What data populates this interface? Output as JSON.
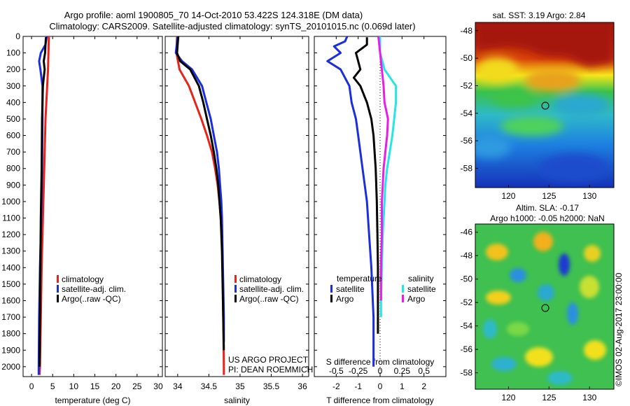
{
  "header": {
    "title_line1": "Argo profile: aoml 1900805_70 14-Oct-2010 53.422S 124.318E (DM data)",
    "title_line2": "Climatology: CARS2009. Satellite-adjusted climatology: synTS_20101015.nc (0.069d later)"
  },
  "colors": {
    "climatology": "#e8231c",
    "satellite": "#1a2ee0",
    "argo": "#000000",
    "argo_s_diff": "#e81ee8",
    "satellite_s_diff": "#25e6e6"
  },
  "chart_data": [
    {
      "type": "line",
      "name": "temperature-profile",
      "xlabel": "temperature (deg C)",
      "ylabel": "",
      "xlim": [
        -2,
        31
      ],
      "ylim": [
        2060,
        0
      ],
      "xticks": [
        0,
        5,
        10,
        15,
        20,
        25,
        30
      ],
      "yticks": [
        0,
        100,
        200,
        300,
        400,
        500,
        600,
        700,
        800,
        900,
        1000,
        1100,
        1200,
        1300,
        1400,
        1500,
        1600,
        1700,
        1800,
        1900,
        2000
      ],
      "legend": [
        "climatology",
        "satellite-adj. clim.",
        "Argo(..raw -QC)"
      ],
      "legend_position": "lower-center",
      "series": [
        {
          "name": "climatology",
          "depth": [
            0,
            100,
            200,
            300,
            500,
            800,
            1100,
            1400,
            1700,
            2000,
            2050
          ],
          "values": [
            4.1,
            4.0,
            3.9,
            3.7,
            3.3,
            3.0,
            2.7,
            2.4,
            2.2,
            2.0,
            1.9
          ]
        },
        {
          "name": "satellite-adj. clim.",
          "depth": [
            0,
            50,
            100,
            150,
            200,
            300,
            500,
            800,
            1100,
            1400,
            1700,
            2000,
            2050
          ],
          "values": [
            3.6,
            3.3,
            2.2,
            1.8,
            2.1,
            2.6,
            2.6,
            2.5,
            2.3,
            2.0,
            1.8,
            1.7,
            1.7
          ]
        },
        {
          "name": "Argo(..raw -QC)",
          "depth": [
            5,
            50,
            100,
            150,
            200,
            250,
            300,
            500,
            800,
            1100,
            1400,
            1700,
            2000
          ],
          "values": [
            3.4,
            3.3,
            3.2,
            2.9,
            3.1,
            2.9,
            2.7,
            2.5,
            2.4,
            2.2,
            2.1,
            2.0,
            1.9
          ]
        }
      ]
    },
    {
      "type": "line",
      "name": "salinity-profile",
      "xlabel": "salinity",
      "xlim": [
        33.8,
        36.1
      ],
      "ylim": [
        2060,
        0
      ],
      "xticks": [
        34,
        34.5,
        35,
        35.5,
        36
      ],
      "legend": [
        "climatology",
        "satellite-adj. clim.",
        "Argo(..raw -QC)"
      ],
      "legend_position": "lower-center",
      "annotation": [
        "US ARGO PROJECT",
        "PI: DEAN ROEMMICH"
      ],
      "series": [
        {
          "name": "climatology",
          "depth": [
            0,
            100,
            200,
            300,
            400,
            500,
            600,
            700,
            800,
            900,
            1000,
            1100,
            1200,
            1400,
            1700,
            2000,
            2050
          ],
          "values": [
            33.99,
            33.98,
            34.03,
            34.18,
            34.28,
            34.38,
            34.47,
            34.55,
            34.6,
            34.64,
            34.67,
            34.69,
            34.71,
            34.72,
            34.73,
            34.74,
            34.74
          ]
        },
        {
          "name": "satellite-adj. clim.",
          "depth": [
            0,
            100,
            150,
            200,
            300,
            400,
            500,
            600,
            700,
            800,
            900,
            1000,
            1100,
            1300,
            1500,
            1700,
            1800,
            1850
          ],
          "values": [
            34.0,
            33.97,
            34.07,
            34.23,
            34.39,
            34.46,
            34.53,
            34.58,
            34.63,
            34.66,
            34.68,
            34.7,
            34.71,
            34.72,
            34.73,
            34.74,
            34.74,
            34.74
          ]
        },
        {
          "name": "Argo(..raw -QC)",
          "depth": [
            0,
            100,
            150,
            200,
            300,
            400,
            500,
            600,
            700,
            800,
            900,
            1000,
            1100,
            1300,
            1500,
            1700,
            1900
          ],
          "values": [
            34.01,
            33.99,
            34.04,
            34.2,
            34.34,
            34.41,
            34.47,
            34.53,
            34.58,
            34.62,
            34.65,
            34.67,
            34.69,
            34.71,
            34.72,
            34.73,
            34.74
          ]
        }
      ]
    },
    {
      "type": "line",
      "name": "difference-profile",
      "xlabel": "T difference from climatology",
      "x2label": "S difference from climatology",
      "xlim": [
        -3,
        3
      ],
      "x2lim": [
        -0.75,
        0.75
      ],
      "ylim": [
        2060,
        0
      ],
      "xticks": [
        -2,
        -1,
        0,
        1,
        2
      ],
      "x2ticks": [
        -0.5,
        -0.25,
        0,
        0.25,
        0.5
      ],
      "legend": [
        "temperature",
        "satellite",
        "Argo",
        "salinity",
        "satellite",
        "Argo"
      ],
      "legend_position": "lower",
      "series": [
        {
          "name": "T satellite",
          "depth": [
            0,
            30,
            60,
            100,
            150,
            200,
            300,
            400,
            500,
            600,
            800,
            1000,
            1200,
            1400,
            1700,
            2000
          ],
          "values": [
            -1.5,
            -1.6,
            -2.1,
            -1.8,
            -2.4,
            -1.8,
            -1.4,
            -1.3,
            -1.1,
            -1.0,
            -0.8,
            -0.6,
            -0.5,
            -0.4,
            -0.3,
            -0.3
          ]
        },
        {
          "name": "T Argo",
          "depth": [
            5,
            50,
            100,
            150,
            200,
            250,
            300,
            400,
            500,
            600,
            800,
            1000,
            1200,
            1400,
            1600,
            1800
          ],
          "values": [
            -0.6,
            -0.6,
            -1.1,
            -1.0,
            -0.9,
            -1.2,
            -0.9,
            -0.6,
            -0.4,
            -0.3,
            -0.2,
            -0.15,
            -0.12,
            -0.1,
            -0.1,
            -0.1
          ]
        },
        {
          "name": "S satellite",
          "depth": [
            0,
            100,
            200,
            300,
            400,
            500,
            600,
            700,
            800,
            900,
            1000,
            1200,
            1400,
            1600,
            1700
          ],
          "values": [
            0.0,
            0.0,
            0.05,
            0.18,
            0.18,
            0.16,
            0.14,
            0.11,
            0.08,
            0.06,
            0.05,
            0.03,
            0.02,
            0.01,
            0.01
          ]
        },
        {
          "name": "S Argo",
          "depth": [
            0,
            100,
            200,
            300,
            400,
            500,
            600,
            700,
            800,
            900,
            1000,
            1200,
            1400,
            1600
          ],
          "values": [
            -0.02,
            0.0,
            0.02,
            0.04,
            0.05,
            0.09,
            0.08,
            0.06,
            0.04,
            0.03,
            0.02,
            0.02,
            0.01,
            0.01
          ]
        }
      ]
    }
  ],
  "maps": [
    {
      "title": "sat. SST: 3.19 Argo: 2.84",
      "xticks": [
        "120",
        "125",
        "130"
      ],
      "yticks": [
        "-48",
        "-50",
        "-52",
        "-54",
        "-56",
        "-58"
      ]
    },
    {
      "title_line1": "Altim. SLA: -0.17",
      "title_line2": "Argo h1000: -0.05 h2000: NaN",
      "xticks": [
        "120",
        "125",
        "130"
      ],
      "yticks": [
        "-46",
        "-48",
        "-50",
        "-52",
        "-54",
        "-56",
        "-58"
      ]
    }
  ],
  "watermark": "©IMOS 02-Aug-2017 23:00:00"
}
